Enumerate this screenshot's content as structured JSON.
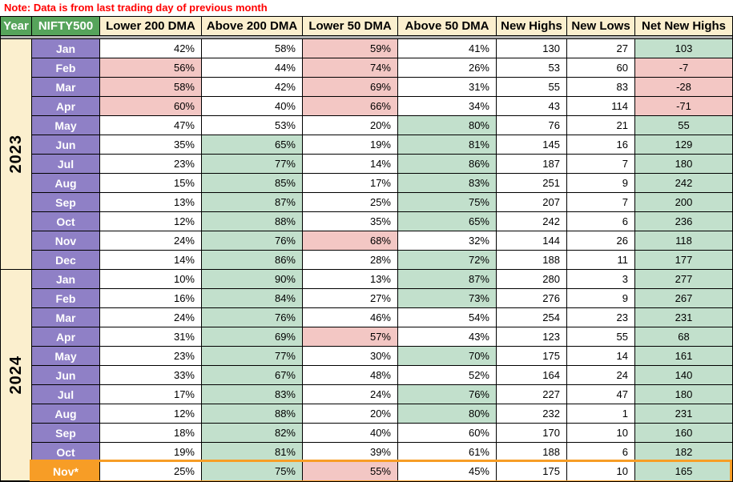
{
  "note": "Note: Data is from last trading day of previous month",
  "colors": {
    "note_text": "#ff0000",
    "header_green": "#56a45b",
    "header_cream": "#fbefce",
    "month_purple": "#8f80c6",
    "cell_green": "#c2e0cc",
    "cell_pink": "#f3c7c4",
    "highlight_orange": "#f79d26",
    "freeze_divider_gray": "#b3b3b3"
  },
  "table": {
    "columns": [
      "Year",
      "NIFTY500",
      "Lower 200 DMA",
      "Above 200 DMA",
      "Lower 50 DMA",
      "Above 50 DMA",
      "New Highs",
      "New Lows",
      "Net New Highs"
    ],
    "fills_legend": {
      "w": "white",
      "g": "green",
      "p": "pink"
    },
    "years": [
      {
        "label": "2023",
        "rows": [
          {
            "month": "Jan",
            "values": [
              "42%",
              "58%",
              "59%",
              "41%",
              "130",
              "27",
              "103"
            ],
            "fills": [
              "w",
              "w",
              "p",
              "w",
              "w",
              "w",
              "g"
            ]
          },
          {
            "month": "Feb",
            "values": [
              "56%",
              "44%",
              "74%",
              "26%",
              "53",
              "60",
              "-7"
            ],
            "fills": [
              "p",
              "w",
              "p",
              "w",
              "w",
              "w",
              "p"
            ]
          },
          {
            "month": "Mar",
            "values": [
              "58%",
              "42%",
              "69%",
              "31%",
              "55",
              "83",
              "-28"
            ],
            "fills": [
              "p",
              "w",
              "p",
              "w",
              "w",
              "w",
              "p"
            ]
          },
          {
            "month": "Apr",
            "values": [
              "60%",
              "40%",
              "66%",
              "34%",
              "43",
              "114",
              "-71"
            ],
            "fills": [
              "p",
              "w",
              "p",
              "w",
              "w",
              "w",
              "p"
            ]
          },
          {
            "month": "May",
            "values": [
              "47%",
              "53%",
              "20%",
              "80%",
              "76",
              "21",
              "55"
            ],
            "fills": [
              "w",
              "w",
              "w",
              "g",
              "w",
              "w",
              "g"
            ]
          },
          {
            "month": "Jun",
            "values": [
              "35%",
              "65%",
              "19%",
              "81%",
              "145",
              "16",
              "129"
            ],
            "fills": [
              "w",
              "g",
              "w",
              "g",
              "w",
              "w",
              "g"
            ]
          },
          {
            "month": "Jul",
            "values": [
              "23%",
              "77%",
              "14%",
              "86%",
              "187",
              "7",
              "180"
            ],
            "fills": [
              "w",
              "g",
              "w",
              "g",
              "w",
              "w",
              "g"
            ]
          },
          {
            "month": "Aug",
            "values": [
              "15%",
              "85%",
              "17%",
              "83%",
              "251",
              "9",
              "242"
            ],
            "fills": [
              "w",
              "g",
              "w",
              "g",
              "w",
              "w",
              "g"
            ]
          },
          {
            "month": "Sep",
            "values": [
              "13%",
              "87%",
              "25%",
              "75%",
              "207",
              "7",
              "200"
            ],
            "fills": [
              "w",
              "g",
              "w",
              "g",
              "w",
              "w",
              "g"
            ]
          },
          {
            "month": "Oct",
            "values": [
              "12%",
              "88%",
              "35%",
              "65%",
              "242",
              "6",
              "236"
            ],
            "fills": [
              "w",
              "g",
              "w",
              "g",
              "w",
              "w",
              "g"
            ]
          },
          {
            "month": "Nov",
            "values": [
              "24%",
              "76%",
              "68%",
              "32%",
              "144",
              "26",
              "118"
            ],
            "fills": [
              "w",
              "g",
              "p",
              "w",
              "w",
              "w",
              "g"
            ]
          },
          {
            "month": "Dec",
            "values": [
              "14%",
              "86%",
              "28%",
              "72%",
              "188",
              "11",
              "177"
            ],
            "fills": [
              "w",
              "g",
              "w",
              "g",
              "w",
              "w",
              "g"
            ]
          }
        ]
      },
      {
        "label": "2024",
        "rows": [
          {
            "month": "Jan",
            "values": [
              "10%",
              "90%",
              "13%",
              "87%",
              "280",
              "3",
              "277"
            ],
            "fills": [
              "w",
              "g",
              "w",
              "g",
              "w",
              "w",
              "g"
            ]
          },
          {
            "month": "Feb",
            "values": [
              "16%",
              "84%",
              "27%",
              "73%",
              "276",
              "9",
              "267"
            ],
            "fills": [
              "w",
              "g",
              "w",
              "g",
              "w",
              "w",
              "g"
            ]
          },
          {
            "month": "Mar",
            "values": [
              "24%",
              "76%",
              "46%",
              "54%",
              "254",
              "23",
              "231"
            ],
            "fills": [
              "w",
              "g",
              "w",
              "w",
              "w",
              "w",
              "g"
            ]
          },
          {
            "month": "Apr",
            "values": [
              "31%",
              "69%",
              "57%",
              "43%",
              "123",
              "55",
              "68"
            ],
            "fills": [
              "w",
              "g",
              "p",
              "w",
              "w",
              "w",
              "g"
            ]
          },
          {
            "month": "May",
            "values": [
              "23%",
              "77%",
              "30%",
              "70%",
              "175",
              "14",
              "161"
            ],
            "fills": [
              "w",
              "g",
              "w",
              "g",
              "w",
              "w",
              "g"
            ]
          },
          {
            "month": "Jun",
            "values": [
              "33%",
              "67%",
              "48%",
              "52%",
              "164",
              "24",
              "140"
            ],
            "fills": [
              "w",
              "g",
              "w",
              "w",
              "w",
              "w",
              "g"
            ]
          },
          {
            "month": "Jul",
            "values": [
              "17%",
              "83%",
              "24%",
              "76%",
              "227",
              "47",
              "180"
            ],
            "fills": [
              "w",
              "g",
              "w",
              "g",
              "w",
              "w",
              "g"
            ]
          },
          {
            "month": "Aug",
            "values": [
              "12%",
              "88%",
              "20%",
              "80%",
              "232",
              "1",
              "231"
            ],
            "fills": [
              "w",
              "g",
              "w",
              "g",
              "w",
              "w",
              "g"
            ]
          },
          {
            "month": "Sep",
            "values": [
              "18%",
              "82%",
              "40%",
              "60%",
              "170",
              "10",
              "160"
            ],
            "fills": [
              "w",
              "g",
              "w",
              "w",
              "w",
              "w",
              "g"
            ]
          },
          {
            "month": "Oct",
            "values": [
              "19%",
              "81%",
              "39%",
              "61%",
              "188",
              "6",
              "182"
            ],
            "fills": [
              "w",
              "g",
              "w",
              "w",
              "w",
              "w",
              "g"
            ]
          },
          {
            "month": "Nov*",
            "values": [
              "25%",
              "75%",
              "55%",
              "45%",
              "175",
              "10",
              "165"
            ],
            "fills": [
              "w",
              "g",
              "p",
              "w",
              "w",
              "w",
              "g"
            ],
            "highlighted": true
          }
        ]
      }
    ]
  }
}
